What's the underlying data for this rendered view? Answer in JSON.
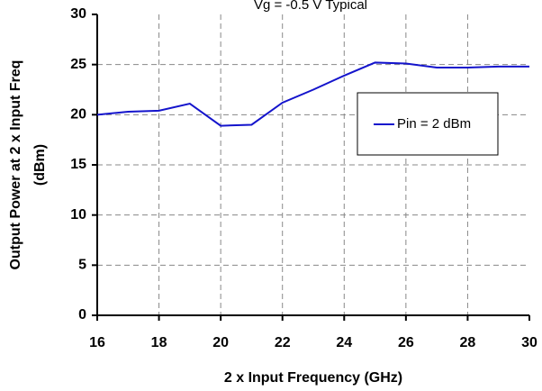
{
  "chart_data": {
    "type": "line",
    "title": "Vg = -0.5 V Typical",
    "x_label": "2 x Input Frequency (GHz)",
    "y_label": [
      "Output Power at 2 x Input Freq",
      "(dBm)"
    ],
    "x": [
      16,
      17,
      18,
      19,
      20,
      21,
      22,
      23,
      24,
      25,
      26,
      27,
      28,
      29,
      30
    ],
    "series": [
      {
        "name": "Pin = 2 dBm",
        "color": "#1414cc",
        "values": [
          20.0,
          20.3,
          20.4,
          21.1,
          18.9,
          19.0,
          21.2,
          22.5,
          23.9,
          25.2,
          25.1,
          24.7,
          24.7,
          24.8,
          24.8
        ]
      }
    ],
    "xlim": [
      16,
      30
    ],
    "xticks": [
      16,
      18,
      20,
      22,
      24,
      26,
      28,
      30
    ],
    "ylim": [
      0,
      30
    ],
    "yticks": [
      0,
      5,
      10,
      15,
      20,
      25,
      30
    ],
    "grid": true,
    "legend": "right"
  }
}
